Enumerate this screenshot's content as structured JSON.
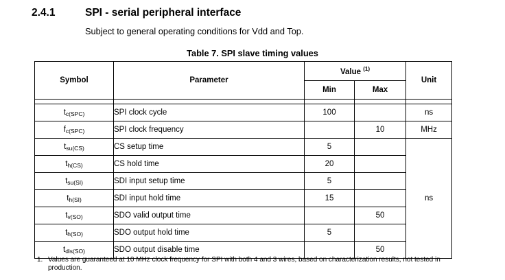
{
  "section": {
    "number": "2.4.1",
    "title": "SPI - serial peripheral interface"
  },
  "subtitle": "Subject to general operating conditions for Vdd and Top.",
  "table": {
    "caption": "Table 7. SPI slave timing values",
    "headers": {
      "symbol": "Symbol",
      "parameter": "Parameter",
      "value": "Value",
      "value_note": "(1)",
      "min": "Min",
      "max": "Max",
      "unit": "Unit"
    },
    "rows": [
      {
        "sym": "t",
        "sub": "c(SPC)",
        "param": "SPI clock cycle",
        "min": "100",
        "max": "",
        "unit": "ns"
      },
      {
        "sym": "f",
        "sub": "c(SPC)",
        "param": "SPI clock frequency",
        "min": "",
        "max": "10",
        "unit": "MHz"
      },
      {
        "sym": "t",
        "sub": "su(CS)",
        "param": "CS setup time",
        "min": "5",
        "max": ""
      },
      {
        "sym": "t",
        "sub": "h(CS)",
        "param": "CS hold time",
        "min": "20",
        "max": ""
      },
      {
        "sym": "t",
        "sub": "su(SI)",
        "param": "SDI input setup time",
        "min": "5",
        "max": ""
      },
      {
        "sym": "t",
        "sub": "h(SI)",
        "param": "SDI input hold time",
        "min": "15",
        "max": ""
      },
      {
        "sym": "t",
        "sub": "v(SO)",
        "param": "SDO valid output time",
        "min": "",
        "max": "50"
      },
      {
        "sym": "t",
        "sub": "h(SO)",
        "param": "SDO output hold time",
        "min": "5",
        "max": ""
      },
      {
        "sym": "t",
        "sub": "dis(SO)",
        "param": "SDO output disable time",
        "min": "",
        "max": "50"
      }
    ],
    "merged_unit": "ns"
  },
  "footnote": {
    "number": "1.",
    "text": "Values are guaranteed at 10 MHz clock frequency for SPI with both 4 and 3 wires, based on characterization results, not tested in production."
  }
}
